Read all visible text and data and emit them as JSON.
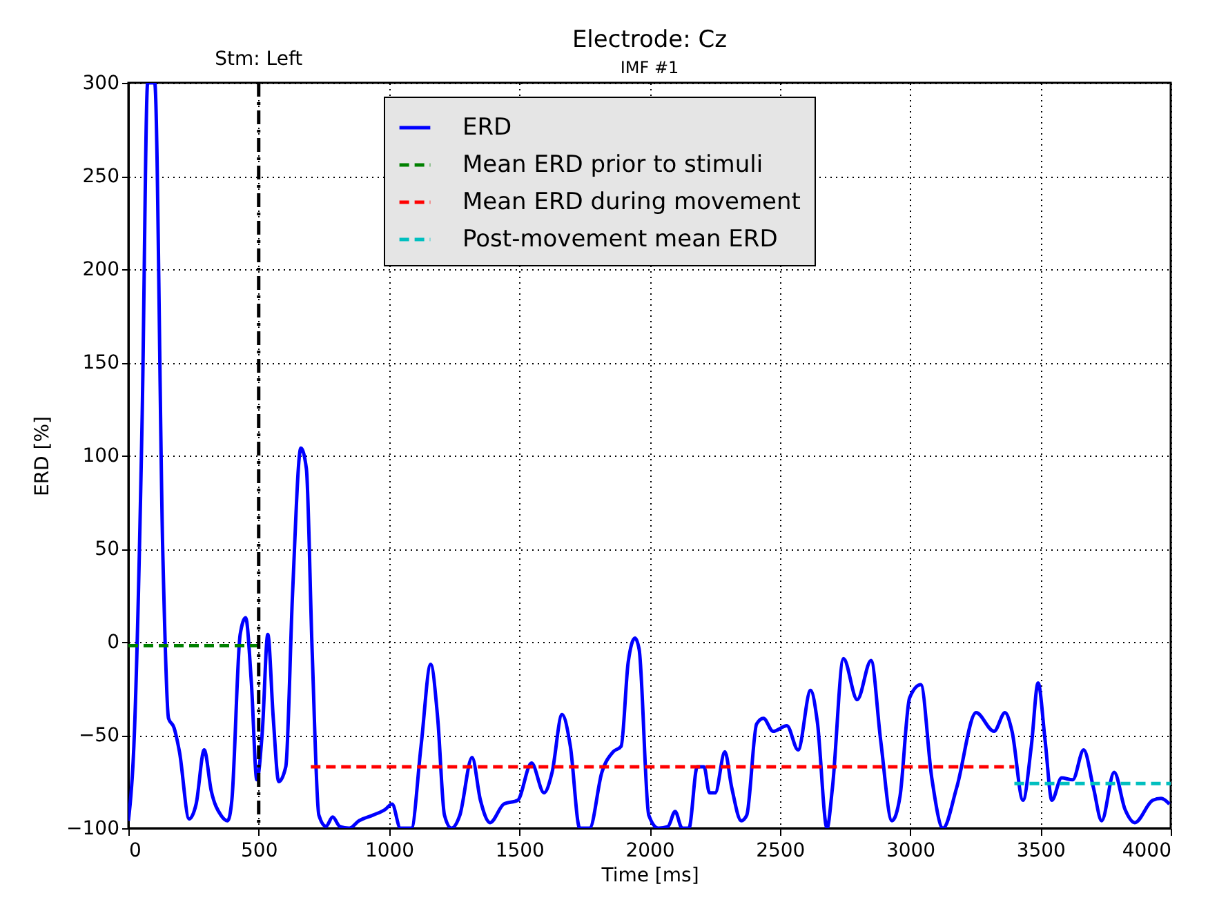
{
  "chart_data": {
    "type": "line",
    "title": "Electrode: Cz",
    "subtitle": "IMF #1",
    "xlabel": "Time [ms]",
    "ylabel": "ERD [%]",
    "xlim": [
      0,
      4000
    ],
    "xticks": [
      0,
      500,
      1000,
      1500,
      2000,
      2500,
      3000,
      3500,
      4000
    ],
    "ylim": [
      -100,
      300
    ],
    "yticks": [
      -100,
      -50,
      0,
      50,
      100,
      150,
      200,
      250,
      300
    ],
    "grid": true,
    "legend": "top",
    "marker": "none",
    "ref_lines": [
      {
        "axis": "x",
        "value": 500,
        "label": "Stm: Left",
        "color": "#000000",
        "line_style": "dashed"
      }
    ],
    "series": [
      {
        "name": "ERD",
        "color": "#0000ff",
        "line_style": "solid",
        "x": [
          0,
          21,
          53,
          74,
          101,
          132,
          154,
          175,
          196,
          233,
          260,
          291,
          318,
          355,
          381,
          397,
          429,
          450,
          472,
          493,
          514,
          535,
          556,
          577,
          604,
          630,
          662,
          683,
          705,
          731,
          758,
          784,
          811,
          848,
          885,
          938,
          985,
          1012,
          1044,
          1086,
          1123,
          1160,
          1187,
          1213,
          1240,
          1272,
          1319,
          1351,
          1388,
          1441,
          1494,
          1547,
          1595,
          1626,
          1664,
          1696,
          1732,
          1770,
          1817,
          1860,
          1891,
          1918,
          1944,
          1960,
          1997,
          2034,
          2071,
          2098,
          2125,
          2151,
          2183,
          2209,
          2230,
          2252,
          2289,
          2315,
          2352,
          2373,
          2411,
          2437,
          2474,
          2527,
          2570,
          2618,
          2644,
          2681,
          2702,
          2744,
          2797,
          2850,
          2887,
          2930,
          2961,
          2998,
          3041,
          3083,
          3126,
          3179,
          3253,
          3322,
          3364,
          3391,
          3433,
          3465,
          3491,
          3518,
          3544,
          3581,
          3624,
          3666,
          3703,
          3735,
          3783,
          3825,
          3862,
          3931,
          3963,
          3995
        ],
        "values": [
          -96,
          -56,
          122,
          300,
          300,
          48,
          -41,
          -46,
          -59,
          -95,
          -87,
          -58,
          -80,
          -93,
          -96,
          -85,
          4,
          13,
          -22,
          -74,
          -48,
          4,
          -41,
          -75,
          -67,
          26,
          104,
          93,
          -4,
          -93,
          -99,
          -94,
          -99,
          -100,
          -96,
          -93,
          -90,
          -87,
          -100,
          -100,
          -56,
          -12,
          -41,
          -93,
          -100,
          -93,
          -62,
          -85,
          -97,
          -87,
          -85,
          -65,
          -81,
          -70,
          -39,
          -56,
          -100,
          -100,
          -70,
          -59,
          -56,
          -11,
          2,
          -4,
          -93,
          -100,
          -99,
          -91,
          -100,
          -100,
          -67,
          -67,
          -81,
          -81,
          -59,
          -78,
          -96,
          -93,
          -44,
          -41,
          -48,
          -45,
          -58,
          -26,
          -43,
          -100,
          -78,
          -9,
          -31,
          -10,
          -53,
          -96,
          -83,
          -30,
          -23,
          -73,
          -100,
          -78,
          -38,
          -48,
          -38,
          -48,
          -85,
          -56,
          -22,
          -53,
          -85,
          -73,
          -74,
          -58,
          -78,
          -96,
          -70,
          -90,
          -97,
          -85,
          -84,
          -87
        ]
      },
      {
        "name": "Mean ERD prior to stimuli",
        "color": "#008000",
        "line_style": "dashed",
        "x": [
          0,
          500
        ],
        "values": [
          -2,
          -2
        ]
      },
      {
        "name": "Mean ERD during movement",
        "color": "#ff0000",
        "line_style": "dashed",
        "x": [
          700,
          3400
        ],
        "values": [
          -67,
          -67
        ]
      },
      {
        "name": "Post-movement mean ERD",
        "color": "#00bfbf",
        "line_style": "dashed",
        "x": [
          3400,
          4000
        ],
        "values": [
          -76,
          -76
        ]
      }
    ]
  }
}
